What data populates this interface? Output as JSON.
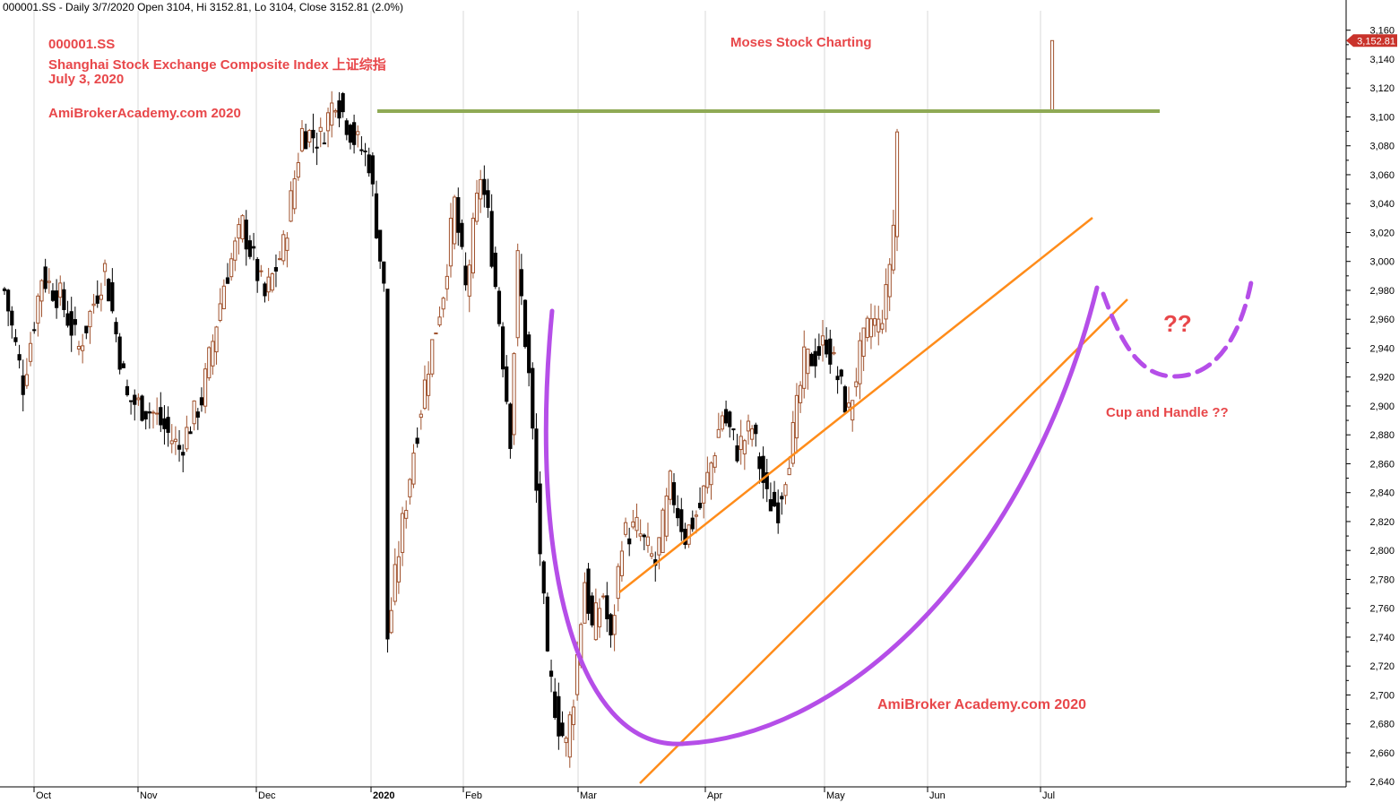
{
  "header": {
    "info": "000001.SS - Daily 3/7/2020 Open 3104, Hi 3152.81, Lo 3104, Close 3152.81 (2.0%)"
  },
  "annotations": {
    "ticker": "000001.SS",
    "index_name": "Shanghai Stock Exchange Composite Index 上证综指",
    "date": "July 3, 2020",
    "site_top": "AmiBrokerAcademy.com  2020",
    "brand": "Moses Stock Charting",
    "question": "??",
    "pattern": "Cup and Handle ??",
    "site_bottom": "AmiBroker Academy.com  2020"
  },
  "colors": {
    "up_candle": "#a0522d",
    "down_candle": "#000000",
    "resistance": "#8faa55",
    "channel": "#ff8c1a",
    "cup": "#b54ee8",
    "annotation": "#e8474a",
    "last_price_tag": "#c9332b"
  },
  "chart_data": {
    "type": "candlestick",
    "title": "",
    "xlabel": "",
    "ylabel": "",
    "ylim": [
      2636,
      3172
    ],
    "y_ticks": [
      2640,
      2660,
      2680,
      2700,
      2720,
      2740,
      2760,
      2780,
      2800,
      2820,
      2840,
      2860,
      2880,
      2900,
      2920,
      2940,
      2960,
      2980,
      3000,
      3020,
      3040,
      3060,
      3080,
      3100,
      3120,
      3140,
      3160
    ],
    "y_tick_labels": [
      "2,640",
      "2,660",
      "2,680",
      "2,700",
      "2,720",
      "2,740",
      "2,760",
      "2,780",
      "2,800",
      "2,820",
      "2,840",
      "2,860",
      "2,880",
      "2,900",
      "2,920",
      "2,940",
      "2,960",
      "2,980",
      "3,000",
      "3,020",
      "3,040",
      "3,060",
      "3,080",
      "3,100",
      "3,120",
      "3,140",
      "3,160"
    ],
    "x_months": [
      "Oct",
      "Nov",
      "Dec",
      "2020",
      "Feb",
      "Mar",
      "Apr",
      "May",
      "Jun",
      "Jul"
    ],
    "last_price_label": "3,152.81",
    "last_price": 3152.81,
    "resistance_level": 3104,
    "anchors": [
      {
        "i": 0,
        "c": 2980
      },
      {
        "i": 5,
        "c": 2915
      },
      {
        "i": 10,
        "c": 2990
      },
      {
        "i": 15,
        "c": 2975
      },
      {
        "i": 20,
        "c": 2940
      },
      {
        "i": 27,
        "c": 2995
      },
      {
        "i": 33,
        "c": 2905
      },
      {
        "i": 40,
        "c": 2895
      },
      {
        "i": 47,
        "c": 2870
      },
      {
        "i": 53,
        "c": 2905
      },
      {
        "i": 59,
        "c": 2985
      },
      {
        "i": 64,
        "c": 3025
      },
      {
        "i": 70,
        "c": 2975
      },
      {
        "i": 75,
        "c": 3010
      },
      {
        "i": 80,
        "c": 3090
      },
      {
        "i": 85,
        "c": 3085
      },
      {
        "i": 89,
        "c": 3115
      },
      {
        "i": 94,
        "c": 3085
      },
      {
        "i": 98,
        "c": 3070
      },
      {
        "i": 102,
        "c": 2980
      },
      {
        "i": 103,
        "c": 2740
      },
      {
        "i": 106,
        "c": 2800
      },
      {
        "i": 110,
        "c": 2870
      },
      {
        "i": 114,
        "c": 2930
      },
      {
        "i": 118,
        "c": 2980
      },
      {
        "i": 121,
        "c": 3040
      },
      {
        "i": 124,
        "c": 2980
      },
      {
        "i": 128,
        "c": 3060
      },
      {
        "i": 130,
        "c": 3030
      },
      {
        "i": 133,
        "c": 2960
      },
      {
        "i": 136,
        "c": 2880
      },
      {
        "i": 138,
        "c": 3000
      },
      {
        "i": 141,
        "c": 2920
      },
      {
        "i": 144,
        "c": 2800
      },
      {
        "i": 146,
        "c": 2720
      },
      {
        "i": 149,
        "c": 2680
      },
      {
        "i": 151,
        "c": 2665
      },
      {
        "i": 153,
        "c": 2700
      },
      {
        "i": 156,
        "c": 2780
      },
      {
        "i": 158,
        "c": 2745
      },
      {
        "i": 161,
        "c": 2770
      },
      {
        "i": 163,
        "c": 2735
      },
      {
        "i": 166,
        "c": 2810
      },
      {
        "i": 170,
        "c": 2815
      },
      {
        "i": 175,
        "c": 2790
      },
      {
        "i": 179,
        "c": 2845
      },
      {
        "i": 183,
        "c": 2810
      },
      {
        "i": 187,
        "c": 2830
      },
      {
        "i": 190,
        "c": 2860
      },
      {
        "i": 193,
        "c": 2895
      },
      {
        "i": 197,
        "c": 2870
      },
      {
        "i": 201,
        "c": 2885
      },
      {
        "i": 205,
        "c": 2835
      },
      {
        "i": 208,
        "c": 2830
      },
      {
        "i": 212,
        "c": 2880
      },
      {
        "i": 215,
        "c": 2930
      },
      {
        "i": 218,
        "c": 2935
      },
      {
        "i": 221,
        "c": 2945
      },
      {
        "i": 224,
        "c": 2920
      },
      {
        "i": 227,
        "c": 2895
      },
      {
        "i": 230,
        "c": 2935
      },
      {
        "i": 233,
        "c": 2960
      },
      {
        "i": 235,
        "c": 2955
      },
      {
        "i": 237,
        "c": 2975
      },
      {
        "i": 239,
        "c": 3025
      },
      {
        "i": 240,
        "c": 3090
      },
      {
        "i": 241,
        "c": 3104
      }
    ],
    "series": [
      {
        "name": "",
        "last": {
          "o": 3104,
          "h": 3152.81,
          "l": 3104,
          "c": 3152.81
        }
      }
    ]
  }
}
